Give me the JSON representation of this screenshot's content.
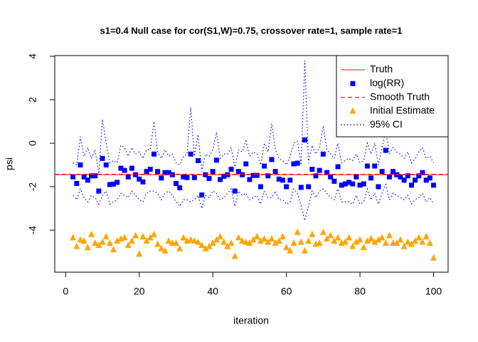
{
  "chart_data": {
    "type": "scatter",
    "title": "s1=0.4 Null case for cor(S1,W)=0.75, crossover rate=1, sample rate=1",
    "x_label": "iteration",
    "y_label": "psi",
    "xlim": [
      -2.96,
      103.96
    ],
    "ylim": [
      -5.93,
      4.03
    ],
    "xticks": [
      0,
      20,
      40,
      60,
      80,
      100
    ],
    "yticks": [
      -4,
      -2,
      0,
      2,
      4
    ],
    "legend": "top-right",
    "x": [
      2,
      3,
      4,
      5,
      6,
      7,
      8,
      9,
      10,
      11,
      12,
      13,
      14,
      15,
      16,
      17,
      18,
      19,
      20,
      21,
      22,
      23,
      24,
      25,
      26,
      27,
      28,
      29,
      30,
      31,
      32,
      33,
      34,
      35,
      36,
      37,
      38,
      39,
      40,
      41,
      42,
      43,
      44,
      45,
      46,
      47,
      48,
      49,
      50,
      51,
      52,
      53,
      54,
      55,
      56,
      57,
      58,
      59,
      60,
      61,
      62,
      63,
      64,
      65,
      66,
      67,
      68,
      69,
      70,
      71,
      72,
      73,
      74,
      75,
      76,
      77,
      78,
      79,
      80,
      81,
      82,
      83,
      84,
      85,
      86,
      87,
      88,
      89,
      90,
      91,
      92,
      93,
      94,
      95,
      96,
      97,
      98,
      99,
      100
    ],
    "series": [
      {
        "name": "Truth",
        "kind": "hline",
        "dash": "solid",
        "color": "#f04040",
        "value": -1.45
      },
      {
        "name": "log(RR)",
        "kind": "points",
        "marker": "square",
        "color": "#0000ff",
        "values": [
          -1.55,
          -1.85,
          -1.0,
          -1.55,
          -1.7,
          -1.5,
          -1.5,
          -2.2,
          -0.7,
          -1.0,
          -1.9,
          -1.88,
          -1.8,
          -1.15,
          -1.25,
          -1.55,
          -1.15,
          -1.45,
          -1.65,
          -1.78,
          -1.3,
          -1.2,
          -0.5,
          -1.3,
          -1.6,
          -1.35,
          -1.35,
          -1.45,
          -1.85,
          -2.05,
          -1.55,
          -1.58,
          -0.5,
          -1.58,
          -0.8,
          -2.38,
          -1.45,
          -1.62,
          -1.3,
          -0.78,
          -1.67,
          -1.52,
          -1.45,
          -1.2,
          -2.2,
          -1.3,
          -1.45,
          -0.95,
          -1.67,
          -1.48,
          -1.48,
          -2.0,
          -1.05,
          -1.5,
          -0.75,
          -1.3,
          -1.65,
          -1.7,
          -2.0,
          -1.7,
          -0.95,
          -0.92,
          -2.03,
          0.15,
          -2.0,
          -1.2,
          -1.5,
          -1.25,
          -0.5,
          -1.35,
          -1.55,
          -1.75,
          -1.08,
          -1.93,
          -1.87,
          -1.8,
          -1.87,
          -1.55,
          -1.93,
          -1.87,
          -1.05,
          -1.6,
          -1.05,
          -2.0,
          -1.3,
          -0.33,
          -1.55,
          -1.3,
          -1.45,
          -1.55,
          -1.7,
          -1.5,
          -1.93,
          -1.7,
          -1.5,
          -1.35,
          -1.7,
          -1.6,
          -1.93
        ]
      },
      {
        "name": "Smooth Truth",
        "kind": "hline",
        "dash": "dashed",
        "color": "#c03030",
        "value": -1.43
      },
      {
        "name": "Initial Estimate",
        "kind": "points",
        "marker": "triangle",
        "color": "#ffa500",
        "values": [
          -4.35,
          -4.75,
          -4.45,
          -4.5,
          -4.8,
          -4.2,
          -4.6,
          -4.7,
          -4.55,
          -4.3,
          -4.6,
          -4.9,
          -4.5,
          -4.4,
          -4.35,
          -4.7,
          -4.5,
          -4.25,
          -5.1,
          -4.3,
          -4.5,
          -4.35,
          -4.2,
          -4.65,
          -4.85,
          -4.95,
          -4.5,
          -4.6,
          -4.6,
          -4.85,
          -4.35,
          -4.5,
          -4.45,
          -4.5,
          -4.55,
          -4.7,
          -4.85,
          -4.75,
          -4.6,
          -4.45,
          -4.3,
          -4.55,
          -4.75,
          -4.6,
          -5.2,
          -4.35,
          -4.5,
          -4.55,
          -4.6,
          -4.45,
          -4.3,
          -4.5,
          -4.4,
          -4.55,
          -4.4,
          -4.6,
          -4.5,
          -4.3,
          -4.8,
          -4.95,
          -4.6,
          -4.1,
          -4.55,
          -4.95,
          -4.5,
          -4.2,
          -4.65,
          -4.6,
          -4.1,
          -4.4,
          -4.25,
          -4.5,
          -4.35,
          -4.6,
          -4.55,
          -4.35,
          -4.75,
          -4.55,
          -4.45,
          -4.8,
          -4.5,
          -4.4,
          -4.55,
          -4.45,
          -4.35,
          -4.6,
          -4.25,
          -4.6,
          -4.6,
          -4.45,
          -4.75,
          -4.55,
          -4.65,
          -4.5,
          -4.35,
          -4.55,
          -4.3,
          -4.6,
          -5.28
        ]
      },
      {
        "name": "95% CI",
        "kind": "band-lines",
        "dash": "dotted",
        "color": "#0000ff",
        "upper": [
          -0.9,
          -1.0,
          0.3,
          -0.6,
          -0.2,
          -0.7,
          -0.3,
          -1.4,
          1.1,
          0.0,
          -0.9,
          -0.8,
          -0.9,
          -0.1,
          -0.2,
          -0.6,
          -0.2,
          -0.5,
          -0.4,
          -0.7,
          -0.3,
          -0.3,
          1.0,
          -0.4,
          -0.7,
          -0.3,
          -0.6,
          -0.5,
          -0.9,
          -1.0,
          -0.6,
          -0.5,
          1.65,
          -0.6,
          0.4,
          -1.3,
          -0.5,
          -0.6,
          -0.3,
          0.5,
          -0.7,
          -0.5,
          -0.5,
          -0.2,
          -1.1,
          -0.3,
          -0.4,
          0.1,
          -0.6,
          -0.4,
          -0.5,
          -1.0,
          0.0,
          -0.4,
          0.9,
          -0.3,
          -0.7,
          -0.8,
          -1.0,
          -0.6,
          0.0,
          0.1,
          -1.0,
          3.8,
          -0.9,
          -0.1,
          -0.5,
          -0.2,
          0.8,
          -0.3,
          -0.5,
          -0.7,
          0.0,
          -0.9,
          -0.8,
          -0.7,
          -0.8,
          -0.5,
          -0.9,
          -0.8,
          0.0,
          -0.5,
          0.0,
          -1.0,
          -0.2,
          0.6,
          -0.5,
          -0.2,
          -0.4,
          -0.5,
          -0.7,
          -0.4,
          -0.9,
          -0.7,
          -0.4,
          -0.2,
          -0.7,
          -0.6,
          -0.9
        ],
        "lower": [
          -2.4,
          -2.6,
          -2.1,
          -2.5,
          -2.7,
          -2.4,
          -2.5,
          -2.8,
          -2.4,
          -2.2,
          -2.8,
          -2.7,
          -2.6,
          -2.3,
          -2.4,
          -2.5,
          -2.2,
          -2.4,
          -2.6,
          -2.7,
          -2.3,
          -2.2,
          -2.2,
          -2.3,
          -2.6,
          -2.3,
          -2.2,
          -2.4,
          -2.7,
          -2.9,
          -2.6,
          -2.6,
          -2.7,
          -2.6,
          -2.4,
          -3.0,
          -2.4,
          -2.5,
          -2.2,
          -2.3,
          -2.6,
          -2.5,
          -2.3,
          -2.1,
          -2.9,
          -2.2,
          -2.4,
          -2.3,
          -2.6,
          -2.5,
          -2.4,
          -2.8,
          -2.2,
          -2.5,
          -2.5,
          -2.2,
          -2.6,
          -2.6,
          -2.8,
          -2.7,
          -2.1,
          -2.3,
          -2.9,
          -3.55,
          -2.9,
          -2.2,
          -2.5,
          -2.2,
          -2.1,
          -2.3,
          -2.5,
          -2.6,
          -2.1,
          -2.7,
          -2.7,
          -2.7,
          -2.8,
          -2.4,
          -2.8,
          -2.7,
          -2.1,
          -2.6,
          -2.3,
          -2.8,
          -2.3,
          -1.9,
          -2.6,
          -2.3,
          -2.4,
          -2.5,
          -2.6,
          -2.4,
          -2.8,
          -2.6,
          -2.5,
          -2.3,
          -2.7,
          -2.5,
          -2.8
        ]
      }
    ]
  }
}
